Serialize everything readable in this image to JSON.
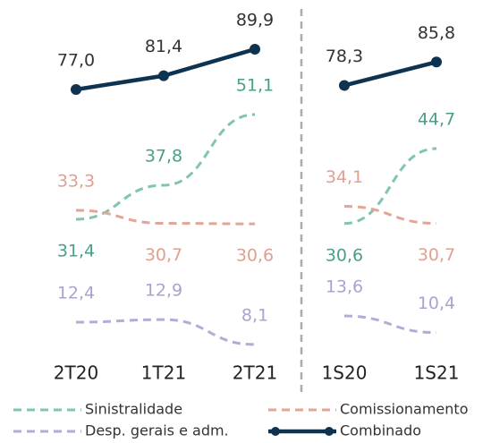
{
  "chart_data": {
    "type": "line",
    "categories": [
      [
        "2T20",
        "1T21",
        "2T21"
      ],
      [
        "1S20",
        "1S21"
      ]
    ],
    "series": [
      {
        "name": "Sinistralidade",
        "color": "#7fc4b5",
        "dash": true,
        "values": [
          [
            31.4,
            37.8,
            51.1
          ],
          [
            30.6,
            44.7
          ]
        ],
        "value_labels": [
          [
            "31,4",
            "37,8",
            "51,1"
          ],
          [
            "30,6",
            "44,7"
          ]
        ]
      },
      {
        "name": "Comissionamento",
        "color": "#e2a596",
        "dash": true,
        "values": [
          [
            33.3,
            30.7,
            30.6
          ],
          [
            34.1,
            30.7
          ]
        ],
        "value_labels": [
          [
            "33,3",
            "30,7",
            "30,6"
          ],
          [
            "34,1",
            "30,7"
          ]
        ]
      },
      {
        "name": "Desp. gerais e adm.",
        "color": "#b3acd5",
        "dash": true,
        "values": [
          [
            12.4,
            12.9,
            8.1
          ],
          [
            13.6,
            10.4
          ]
        ],
        "value_labels": [
          [
            "12,4",
            "12,9",
            "8,1"
          ],
          [
            "13,6",
            "10,4"
          ]
        ]
      },
      {
        "name": "Combinado",
        "color": "#0e3350",
        "dash": false,
        "markers": true,
        "values": [
          [
            77.0,
            81.4,
            89.9
          ],
          [
            78.3,
            85.8
          ]
        ],
        "value_labels": [
          [
            "77,0",
            "81,4",
            "89,9"
          ],
          [
            "78,3",
            "85,8"
          ]
        ]
      }
    ]
  }
}
